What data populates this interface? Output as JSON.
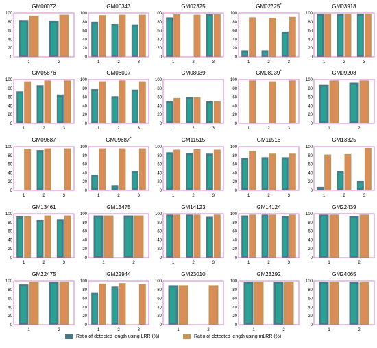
{
  "colors": {
    "lrr": "#4a7a86",
    "mlrr": "#c4955a",
    "frame": "#d060c8",
    "accent_lrr": "#1ab69a",
    "accent_mlrr": "#f0855a"
  },
  "legend": {
    "lrr": "Ratio of detected length using LRR (%)",
    "mlrr": "Ratio of detected length using mLRR (%)"
  },
  "chart_data": [
    {
      "type": "bar",
      "title": "GM00072",
      "categories": [
        "1",
        "2"
      ],
      "ylim": [
        0,
        100
      ],
      "series": [
        {
          "name": "Ratio of detected length using LRR (%)",
          "values": [
            84,
            83
          ]
        },
        {
          "name": "Ratio of detected length using mLRR (%)",
          "values": [
            94,
            96
          ]
        }
      ]
    },
    {
      "type": "bar",
      "title": "GM00343",
      "categories": [
        "1",
        "2",
        "3"
      ],
      "ylim": [
        0,
        100
      ],
      "series": [
        {
          "name": "Ratio of detected length using LRR (%)",
          "values": [
            80,
            75,
            74
          ]
        },
        {
          "name": "Ratio of detected length using mLRR (%)",
          "values": [
            95,
            96,
            96
          ]
        }
      ]
    },
    {
      "type": "bar",
      "title": "GM02325",
      "categories": [
        "1",
        "2",
        "3"
      ],
      "ylim": [
        0,
        100
      ],
      "series": [
        {
          "name": "Ratio of detected length using LRR (%)",
          "values": [
            90,
            0,
            97
          ]
        },
        {
          "name": "Ratio of detected length using mLRR (%)",
          "values": [
            97,
            96,
            97
          ]
        }
      ]
    },
    {
      "type": "bar",
      "title": "GM02325",
      "title_mark": "*",
      "categories": [
        "1",
        "2",
        "3"
      ],
      "ylim": [
        0,
        100
      ],
      "series": [
        {
          "name": "Ratio of detected length using LRR (%)",
          "values": [
            15,
            15,
            58
          ]
        },
        {
          "name": "Ratio of detected length using mLRR (%)",
          "values": [
            90,
            89,
            91
          ]
        }
      ]
    },
    {
      "type": "bar",
      "title": "GM03918",
      "categories": [
        "1",
        "2",
        "3"
      ],
      "ylim": [
        0,
        100
      ],
      "series": [
        {
          "name": "Ratio of detected length using LRR (%)",
          "values": [
            98,
            98,
            98
          ]
        },
        {
          "name": "Ratio of detected length using mLRR (%)",
          "values": [
            98,
            98,
            98
          ]
        }
      ]
    },
    {
      "type": "bar",
      "title": "GM05876",
      "categories": [
        "1",
        "2",
        "3"
      ],
      "ylim": [
        0,
        100
      ],
      "series": [
        {
          "name": "Ratio of detected length using LRR (%)",
          "values": [
            73,
            87,
            66
          ]
        },
        {
          "name": "Ratio of detected length using mLRR (%)",
          "values": [
            96,
            98,
            98
          ]
        }
      ]
    },
    {
      "type": "bar",
      "title": "GM06097",
      "categories": [
        "1",
        "2",
        "3"
      ],
      "ylim": [
        0,
        100
      ],
      "series": [
        {
          "name": "Ratio of detected length using LRR (%)",
          "values": [
            78,
            62,
            77
          ]
        },
        {
          "name": "Ratio of detected length using mLRR (%)",
          "values": [
            96,
            98,
            96
          ]
        }
      ]
    },
    {
      "type": "bar",
      "title": "GM08039",
      "categories": [
        "1",
        "2",
        "3"
      ],
      "ylim": [
        0,
        100
      ],
      "series": [
        {
          "name": "Ratio of detected length using LRR (%)",
          "values": [
            50,
            60,
            50
          ]
        },
        {
          "name": "Ratio of detected length using mLRR (%)",
          "values": [
            58,
            60,
            50
          ]
        }
      ]
    },
    {
      "type": "bar",
      "title": "GM08039",
      "title_mark": "*",
      "categories": [
        "1",
        "2",
        "3"
      ],
      "ylim": [
        0,
        100
      ],
      "series": [
        {
          "name": "Ratio of detected length using LRR (%)",
          "values": [
            0,
            0,
            0
          ]
        },
        {
          "name": "Ratio of detected length using mLRR (%)",
          "values": [
            98,
            96,
            98
          ]
        }
      ]
    },
    {
      "type": "bar",
      "title": "GM09208",
      "categories": [
        "1",
        "2"
      ],
      "ylim": [
        0,
        100
      ],
      "series": [
        {
          "name": "Ratio of detected length using LRR (%)",
          "values": [
            88,
            93
          ]
        },
        {
          "name": "Ratio of detected length using mLRR (%)",
          "values": [
            98,
            98
          ]
        }
      ]
    },
    {
      "type": "bar",
      "title": "GM09687",
      "categories": [
        "1",
        "2",
        "3"
      ],
      "ylim": [
        0,
        100
      ],
      "series": [
        {
          "name": "Ratio of detected length using LRR (%)",
          "values": [
            0,
            92,
            0
          ]
        },
        {
          "name": "Ratio of detected length using mLRR (%)",
          "values": [
            95,
            96,
            96
          ]
        }
      ]
    },
    {
      "type": "bar",
      "title": "GM09687",
      "title_mark": "*",
      "categories": [
        "1",
        "2",
        "3"
      ],
      "ylim": [
        0,
        100
      ],
      "series": [
        {
          "name": "Ratio of detected length using LRR (%)",
          "values": [
            36,
            12,
            45
          ]
        },
        {
          "name": "Ratio of detected length using mLRR (%)",
          "values": [
            96,
            96,
            96
          ]
        }
      ]
    },
    {
      "type": "bar",
      "title": "GM11515",
      "categories": [
        "1",
        "2",
        "3"
      ],
      "ylim": [
        0,
        100
      ],
      "series": [
        {
          "name": "Ratio of detected length using LRR (%)",
          "values": [
            87,
            85,
            84
          ]
        },
        {
          "name": "Ratio of detected length using mLRR (%)",
          "values": [
            93,
            94,
            93
          ]
        }
      ]
    },
    {
      "type": "bar",
      "title": "GM11516",
      "categories": [
        "1",
        "2",
        "3"
      ],
      "ylim": [
        0,
        100
      ],
      "series": [
        {
          "name": "Ratio of detected length using LRR (%)",
          "values": [
            75,
            76,
            76
          ]
        },
        {
          "name": "Ratio of detected length using mLRR (%)",
          "values": [
            90,
            84,
            84
          ]
        }
      ]
    },
    {
      "type": "bar",
      "title": "GM13325",
      "categories": [
        "1",
        "2",
        "3"
      ],
      "ylim": [
        0,
        100
      ],
      "series": [
        {
          "name": "Ratio of detected length using LRR (%)",
          "values": [
            8,
            45,
            22
          ]
        },
        {
          "name": "Ratio of detected length using mLRR (%)",
          "values": [
            82,
            83,
            97
          ]
        }
      ]
    },
    {
      "type": "bar",
      "title": "GM13461",
      "categories": [
        "1",
        "2",
        "3"
      ],
      "ylim": [
        0,
        100
      ],
      "series": [
        {
          "name": "Ratio of detected length using LRR (%)",
          "values": [
            94,
            86,
            87
          ]
        },
        {
          "name": "Ratio of detected length using mLRR (%)",
          "values": [
            94,
            96,
            96
          ]
        }
      ]
    },
    {
      "type": "bar",
      "title": "GM13475",
      "categories": [
        "1",
        "2"
      ],
      "ylim": [
        0,
        100
      ],
      "series": [
        {
          "name": "Ratio of detected length using LRR (%)",
          "values": [
            96,
            96
          ]
        },
        {
          "name": "Ratio of detected length using mLRR (%)",
          "values": [
            96,
            96
          ]
        }
      ]
    },
    {
      "type": "bar",
      "title": "GM14123",
      "categories": [
        "1",
        "2",
        "3"
      ],
      "ylim": [
        0,
        100
      ],
      "series": [
        {
          "name": "Ratio of detected length using LRR (%)",
          "values": [
            98,
            98,
            93
          ]
        },
        {
          "name": "Ratio of detected length using mLRR (%)",
          "values": [
            98,
            98,
            98
          ]
        }
      ]
    },
    {
      "type": "bar",
      "title": "GM14124",
      "categories": [
        "1",
        "2",
        "3"
      ],
      "ylim": [
        0,
        100
      ],
      "series": [
        {
          "name": "Ratio of detected length using LRR (%)",
          "values": [
            96,
            98,
            95
          ]
        },
        {
          "name": "Ratio of detected length using mLRR (%)",
          "values": [
            98,
            98,
            98
          ]
        }
      ]
    },
    {
      "type": "bar",
      "title": "GM22439",
      "categories": [
        "1",
        "2"
      ],
      "ylim": [
        0,
        100
      ],
      "series": [
        {
          "name": "Ratio of detected length using LRR (%)",
          "values": [
            98,
            95
          ]
        },
        {
          "name": "Ratio of detected length using mLRR (%)",
          "values": [
            98,
            98
          ]
        }
      ]
    },
    {
      "type": "bar",
      "title": "GM22475",
      "categories": [
        "1",
        "2"
      ],
      "ylim": [
        0,
        100
      ],
      "series": [
        {
          "name": "Ratio of detected length using LRR (%)",
          "values": [
            92,
            98
          ]
        },
        {
          "name": "Ratio of detected length using mLRR (%)",
          "values": [
            98,
            98
          ]
        }
      ]
    },
    {
      "type": "bar",
      "title": "GM22944",
      "categories": [
        "1",
        "2",
        "3"
      ],
      "ylim": [
        0,
        100
      ],
      "series": [
        {
          "name": "Ratio of detected length using LRR (%)",
          "values": [
            74,
            87,
            0
          ]
        },
        {
          "name": "Ratio of detected length using mLRR (%)",
          "values": [
            94,
            95,
            93
          ]
        }
      ]
    },
    {
      "type": "bar",
      "title": "GM23010",
      "categories": [
        "1",
        "2"
      ],
      "ylim": [
        0,
        100
      ],
      "series": [
        {
          "name": "Ratio of detected length using LRR (%)",
          "values": [
            90,
            0
          ]
        },
        {
          "name": "Ratio of detected length using mLRR (%)",
          "values": [
            90,
            90
          ]
        }
      ]
    },
    {
      "type": "bar",
      "title": "GM23292",
      "categories": [
        "1",
        "2"
      ],
      "ylim": [
        0,
        100
      ],
      "series": [
        {
          "name": "Ratio of detected length using LRR (%)",
          "values": [
            98,
            98
          ]
        },
        {
          "name": "Ratio of detected length using mLRR (%)",
          "values": [
            98,
            98
          ]
        }
      ]
    },
    {
      "type": "bar",
      "title": "GM24065",
      "categories": [
        "1",
        "2"
      ],
      "ylim": [
        0,
        100
      ],
      "series": [
        {
          "name": "Ratio of detected length using LRR (%)",
          "values": [
            98,
            98
          ]
        },
        {
          "name": "Ratio of detected length using mLRR (%)",
          "values": [
            98,
            98
          ]
        }
      ]
    }
  ]
}
